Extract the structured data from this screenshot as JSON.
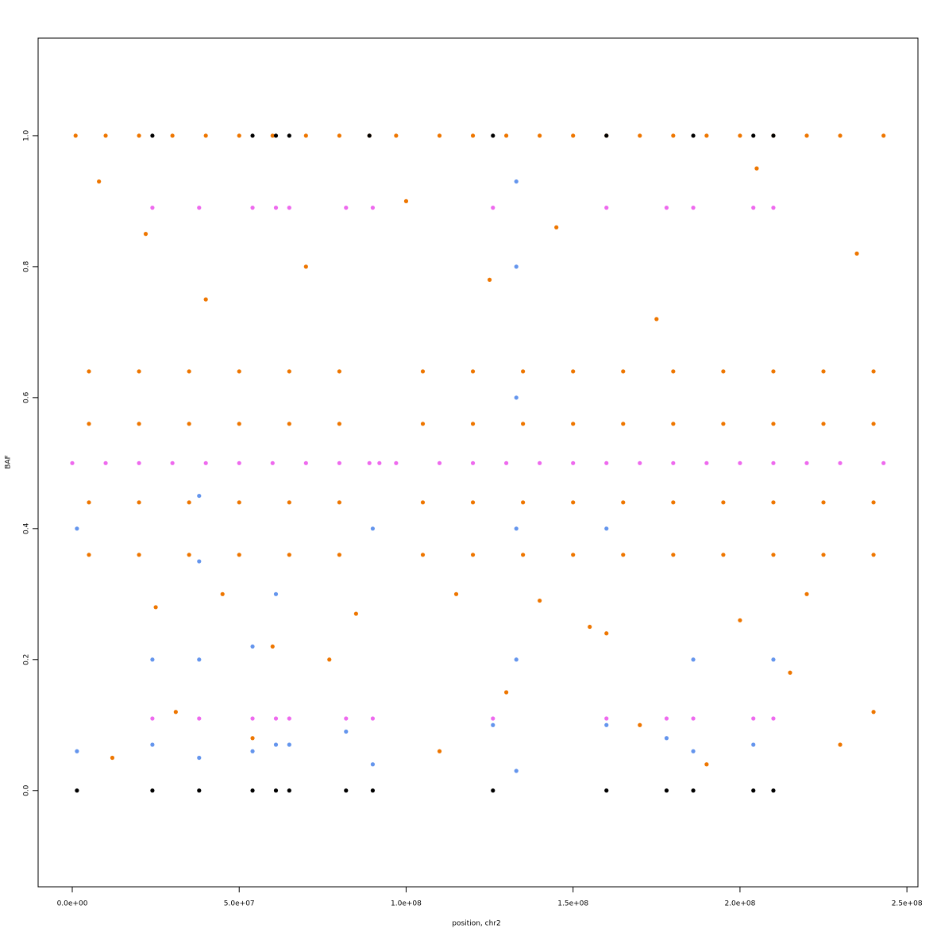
{
  "chart_data": {
    "type": "scatter",
    "x_label": "position, chr2",
    "y_label": "BAF",
    "xlim": [
      -10230000.0,
      253300000.0
    ],
    "ylim": [
      -0.147,
      1.149
    ],
    "xticks": [
      {
        "value": 0,
        "label": "0.0e+00"
      },
      {
        "value": 50000000.0,
        "label": "5.0e+07"
      },
      {
        "value": 100000000.0,
        "label": "1.0e+08"
      },
      {
        "value": 150000000.0,
        "label": "1.5e+08"
      },
      {
        "value": 200000000.0,
        "label": "2.0e+08"
      },
      {
        "value": 250000000.0,
        "label": "2.5e+08"
      }
    ],
    "yticks": [
      {
        "value": 0,
        "label": "0.0"
      },
      0.2,
      0.4,
      0.6,
      0.8,
      {
        "value": 1,
        "label": "1.0"
      }
    ],
    "series": [
      {
        "color": "#ee7600",
        "x": [
          1000000.0,
          10000000.0,
          20000000.0,
          30000000.0,
          40000000.0,
          50000000.0,
          60000000.0,
          70000000.0,
          80000000.0,
          89000000.0,
          97000000.0,
          110000000.0,
          120000000.0,
          130000000.0,
          140000000.0,
          150000000.0,
          160000000.0,
          170000000.0,
          180000000.0,
          190000000.0,
          200000000.0,
          210000000.0,
          220000000.0,
          230000000.0,
          243000000.0,
          5000000.0,
          20000000.0,
          35000000.0,
          50000000.0,
          65000000.0,
          80000000.0,
          105000000.0,
          120000000.0,
          135000000.0,
          150000000.0,
          165000000.0,
          180000000.0,
          195000000.0,
          210000000.0,
          225000000.0,
          240000000.0,
          5000000.0,
          20000000.0,
          35000000.0,
          50000000.0,
          65000000.0,
          80000000.0,
          105000000.0,
          120000000.0,
          135000000.0,
          150000000.0,
          165000000.0,
          180000000.0,
          195000000.0,
          210000000.0,
          225000000.0,
          240000000.0,
          5000000.0,
          20000000.0,
          35000000.0,
          50000000.0,
          65000000.0,
          80000000.0,
          105000000.0,
          120000000.0,
          135000000.0,
          150000000.0,
          165000000.0,
          180000000.0,
          195000000.0,
          210000000.0,
          225000000.0,
          240000000.0,
          5000000.0,
          20000000.0,
          35000000.0,
          50000000.0,
          65000000.0,
          80000000.0,
          105000000.0,
          120000000.0,
          135000000.0,
          150000000.0,
          165000000.0,
          180000000.0,
          195000000.0,
          210000000.0,
          225000000.0,
          240000000.0,
          12000000.0,
          31000000.0,
          54000000.0,
          77000000.0,
          110000000.0,
          130000000.0,
          155000000.0,
          170000000.0,
          190000000.0,
          215000000.0,
          230000000.0,
          25000000.0,
          45000000.0,
          60000000.0,
          85000000.0,
          115000000.0,
          140000000.0,
          160000000.0,
          200000000.0,
          220000000.0,
          240000000.0,
          8000000.0,
          22000000.0,
          40000000.0,
          70000000.0,
          100000000.0,
          125000000.0,
          145000000.0,
          175000000.0,
          205000000.0,
          235000000.0
        ],
        "y": [
          1,
          1,
          1,
          1,
          1,
          1,
          1,
          1,
          1,
          1,
          1,
          1,
          1,
          1,
          1,
          1,
          1,
          1,
          1,
          1,
          1,
          1,
          1,
          1,
          1,
          0.36,
          0.36,
          0.36,
          0.36,
          0.36,
          0.36,
          0.36,
          0.36,
          0.36,
          0.36,
          0.36,
          0.36,
          0.36,
          0.36,
          0.36,
          0.36,
          0.44,
          0.44,
          0.44,
          0.44,
          0.44,
          0.44,
          0.44,
          0.44,
          0.44,
          0.44,
          0.44,
          0.44,
          0.44,
          0.44,
          0.44,
          0.44,
          0.56,
          0.56,
          0.56,
          0.56,
          0.56,
          0.56,
          0.56,
          0.56,
          0.56,
          0.56,
          0.56,
          0.56,
          0.56,
          0.56,
          0.56,
          0.56,
          0.64,
          0.64,
          0.64,
          0.64,
          0.64,
          0.64,
          0.64,
          0.64,
          0.64,
          0.64,
          0.64,
          0.64,
          0.64,
          0.64,
          0.64,
          0.64,
          0.05,
          0.12,
          0.08,
          0.2,
          0.06,
          0.15,
          0.25,
          0.1,
          0.04,
          0.18,
          0.07,
          0.28,
          0.3,
          0.22,
          0.27,
          0.3,
          0.29,
          0.24,
          0.26,
          0.3,
          0.12,
          0.93,
          0.85,
          0.75,
          0.8,
          0.9,
          0.78,
          0.86,
          0.72,
          0.95,
          0.82
        ]
      },
      {
        "color": "#6495ed",
        "x": [
          1400000.0,
          1400000.0,
          24000000.0,
          24000000.0,
          38000000.0,
          38000000.0,
          38000000.0,
          38000000.0,
          54000000.0,
          54000000.0,
          61000000.0,
          61000000.0,
          65000000.0,
          82000000.0,
          90000000.0,
          90000000.0,
          126000000.0,
          133000000.0,
          133000000.0,
          133000000.0,
          133000000.0,
          133000000.0,
          133000000.0,
          160000000.0,
          160000000.0,
          178000000.0,
          186000000.0,
          186000000.0,
          204000000.0,
          210000000.0
        ],
        "y": [
          0.06,
          0.4,
          0.07,
          0.2,
          0.05,
          0.2,
          0.35,
          0.45,
          0.06,
          0.22,
          0.07,
          0.3,
          0.07,
          0.09,
          0.04,
          0.4,
          0.1,
          0.03,
          0.2,
          0.4,
          0.6,
          0.8,
          0.93,
          0.1,
          0.4,
          0.08,
          0.06,
          0.2,
          0.07,
          0.2
        ]
      },
      {
        "color": "#ee6aee",
        "x": [
          0,
          10000000.0,
          20000000.0,
          30000000.0,
          40000000.0,
          50000000.0,
          60000000.0,
          70000000.0,
          80000000.0,
          89000000.0,
          92000000.0,
          97000000.0,
          110000000.0,
          120000000.0,
          130000000.0,
          140000000.0,
          150000000.0,
          160000000.0,
          170000000.0,
          180000000.0,
          190000000.0,
          200000000.0,
          210000000.0,
          220000000.0,
          230000000.0,
          243000000.0,
          24000000.0,
          38000000.0,
          54000000.0,
          61000000.0,
          65000000.0,
          82000000.0,
          90000000.0,
          126000000.0,
          160000000.0,
          178000000.0,
          186000000.0,
          204000000.0,
          210000000.0,
          24000000.0,
          38000000.0,
          54000000.0,
          61000000.0,
          65000000.0,
          82000000.0,
          90000000.0,
          126000000.0,
          160000000.0,
          178000000.0,
          186000000.0,
          204000000.0,
          210000000.0
        ],
        "y": [
          0.5,
          0.5,
          0.5,
          0.5,
          0.5,
          0.5,
          0.5,
          0.5,
          0.5,
          0.5,
          0.5,
          0.5,
          0.5,
          0.5,
          0.5,
          0.5,
          0.5,
          0.5,
          0.5,
          0.5,
          0.5,
          0.5,
          0.5,
          0.5,
          0.5,
          0.5,
          0.89,
          0.89,
          0.89,
          0.89,
          0.89,
          0.89,
          0.89,
          0.89,
          0.89,
          0.89,
          0.89,
          0.89,
          0.89,
          0.11,
          0.11,
          0.11,
          0.11,
          0.11,
          0.11,
          0.11,
          0.11,
          0.11,
          0.11,
          0.11,
          0.11,
          0.11
        ]
      },
      {
        "color": "#000000",
        "x": [
          1400000.0,
          24000000.0,
          38000000.0,
          54000000.0,
          61000000.0,
          65000000.0,
          82000000.0,
          90000000.0,
          126000000.0,
          160000000.0,
          178000000.0,
          186000000.0,
          204000000.0,
          210000000.0,
          24000000.0,
          54000000.0,
          61000000.0,
          65000000.0,
          89000000.0,
          126000000.0,
          160000000.0,
          186000000.0,
          204000000.0,
          210000000.0
        ],
        "y": [
          0,
          0,
          0,
          0,
          0,
          0,
          0,
          0,
          0,
          0,
          0,
          0,
          0,
          0,
          1,
          1,
          1,
          1,
          1,
          1,
          1,
          1,
          1,
          1
        ]
      }
    ]
  }
}
